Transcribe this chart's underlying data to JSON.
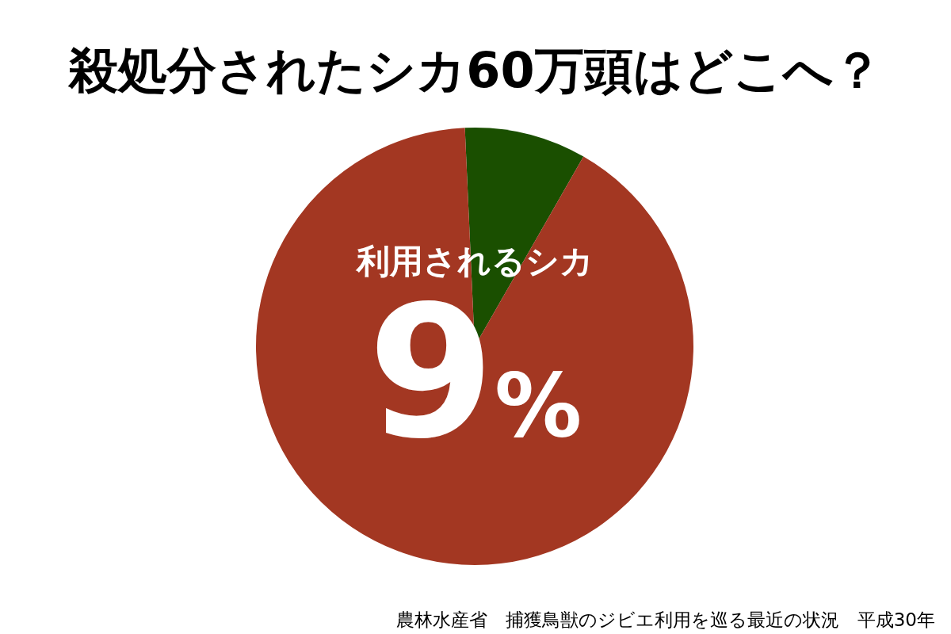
{
  "chart_data": {
    "type": "pie",
    "title": "殺処分されたシカ60万頭はどこへ？",
    "categories": [
      "利用されるシカ",
      null
    ],
    "values": [
      9,
      91
    ],
    "colors": [
      "#1a4f00",
      "#a33722"
    ],
    "value_labels": [
      "9%",
      null
    ],
    "annotations": [
      "農林水産省　捕獲鳥獣のジビエ利用を巡る最近の状況　平成30年"
    ]
  }
}
